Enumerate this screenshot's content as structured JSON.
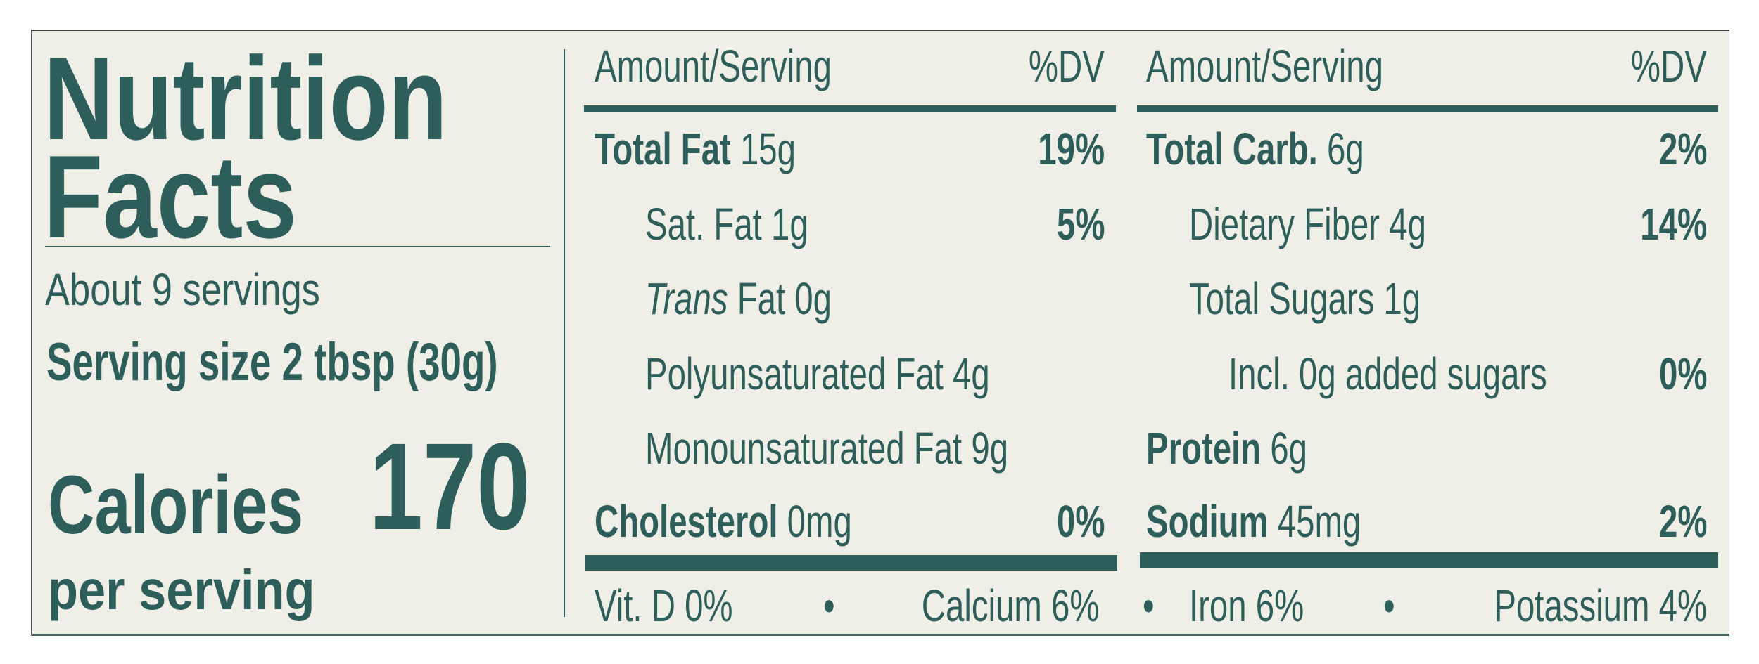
{
  "title_line1": "Nutrition",
  "title_line2": "Facts",
  "servings_per_container": "About 9 servings",
  "serving_size": "Serving size 2 tbsp (30g)",
  "calories_label": "Calories",
  "calories_value": "170",
  "per_serving": "per serving",
  "header": {
    "amount": "Amount/Serving",
    "dv": "%DV"
  },
  "left_rows": [
    {
      "bold": "Total Fat",
      "text": " 15g",
      "dv": "19%"
    },
    {
      "bold": "",
      "text": "Sat. Fat  1g",
      "dv": "5%"
    },
    {
      "italic": "Trans",
      "text": " Fat 0g",
      "dv": ""
    },
    {
      "bold": "",
      "text": "Polyunsaturated Fat 4g",
      "dv": ""
    },
    {
      "bold": "",
      "text": "Monounsaturated Fat 9g",
      "dv": ""
    },
    {
      "bold": "Cholesterol",
      "text": " 0mg",
      "dv": "0%"
    }
  ],
  "right_rows": [
    {
      "bold": "Total Carb.",
      "text": " 6g",
      "dv": "2%"
    },
    {
      "bold": "",
      "text": "Dietary Fiber 4g",
      "dv": "14%"
    },
    {
      "bold": "",
      "text": "Total Sugars 1g",
      "dv": ""
    },
    {
      "bold": "",
      "text": "Incl. 0g added sugars",
      "dv": "0%"
    },
    {
      "bold": "Protein",
      "text": " 6g",
      "dv": ""
    },
    {
      "bold": "Sodium",
      "text": " 45mg",
      "dv": "2%"
    }
  ],
  "footer": {
    "vit_d": "Vit. D  0%",
    "calcium": "Calcium  6%",
    "iron": "Iron 6%",
    "potassium": "Potassium  4%",
    "separator": "•"
  },
  "colors": {
    "ink": "#2d5e59",
    "background": "#efefe8"
  }
}
